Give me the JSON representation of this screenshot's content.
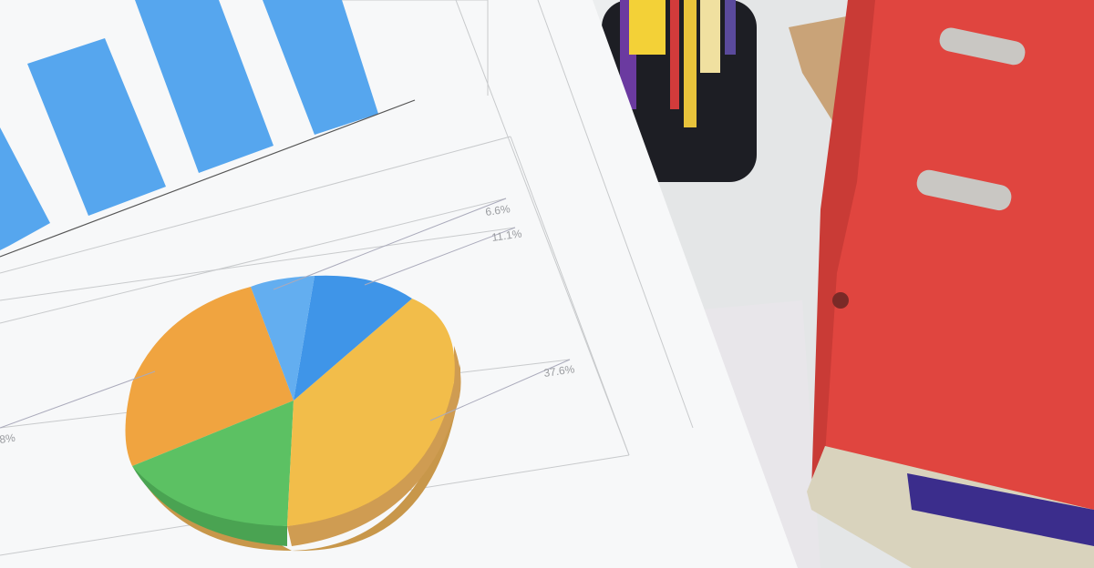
{
  "pie_labels": {
    "label_a": "6.6%",
    "label_b": "11.1%",
    "label_c": "37.6%",
    "label_d": "8%"
  },
  "colors": {
    "bar_blue": "#56a6ee",
    "pie_light_blue": "#63aef0",
    "pie_blue": "#3f95e8",
    "pie_yellow": "#f2bd4a",
    "pie_orange": "#f0a440",
    "pie_green": "#5cc163",
    "binder_red": "#e0453f",
    "paper": "#f7f8f9"
  }
}
